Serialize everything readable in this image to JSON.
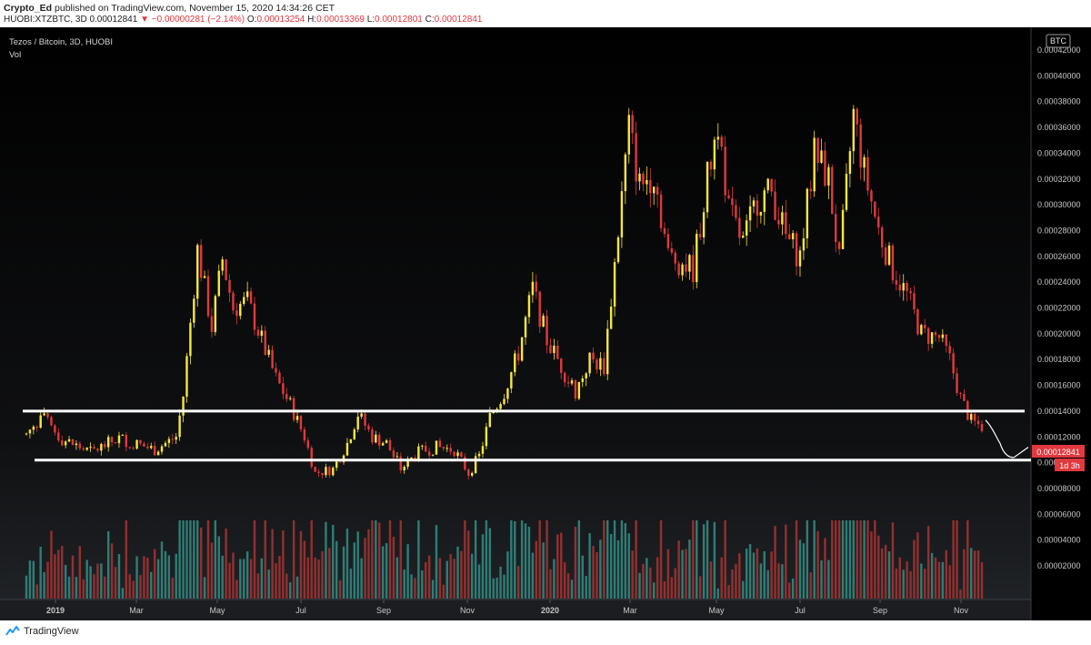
{
  "header": {
    "author": "Crypto_Ed",
    "published_text": "published on TradingView.com, November 15, 2020 14:34:26 CET",
    "symbol_line_prefix": "HUOBI:XTZBTC, 3D",
    "last": "0.00012841",
    "change": "−0.00000281 (−2.14%)",
    "o_label": "O:",
    "o": "0.00013254",
    "h_label": "H:",
    "h": "0.00013369",
    "l_label": "L:",
    "l": "0.00012801",
    "c_label": "C:",
    "c": "0.00012841"
  },
  "legend": {
    "title": "Tezos / Bitcoin, 3D, HUOBI",
    "vol": "Vol"
  },
  "currency_badge": "BTC",
  "price_tag": "0.00012841",
  "countdown_tag": "1d 3h",
  "footer": {
    "brand": "TradingView"
  },
  "colors": {
    "up": "#f5e73b",
    "down": "#e0393e",
    "vol_up": "#2f7d76",
    "vol_down": "#93302f",
    "background": "#000000"
  },
  "chart_data": {
    "type": "candlestick",
    "y_axis": {
      "min": 2e-05,
      "max": 0.00044,
      "ticks": [
        2e-05,
        4e-05,
        6e-05,
        8e-05,
        0.0001,
        0.00012,
        0.00014,
        0.00016,
        0.00018,
        0.0002,
        0.00022,
        0.00024,
        0.00026,
        0.00028,
        0.0003,
        0.00032,
        0.00034,
        0.00036,
        0.00038,
        0.0004,
        0.00042
      ]
    },
    "x_axis": {
      "labels": [
        "2019",
        "Mar",
        "May",
        "Jul",
        "Sep",
        "Nov",
        "2020",
        "Mar",
        "May",
        "Jul",
        "Sep",
        "Nov"
      ]
    },
    "close_path": [
      {
        "t": 0,
        "v": 0.000122
      },
      {
        "t": 4,
        "v": 0.000136
      },
      {
        "t": 10,
        "v": 0.000118
      },
      {
        "t": 18,
        "v": 0.000108
      },
      {
        "t": 26,
        "v": 0.000119
      },
      {
        "t": 36,
        "v": 0.00011
      },
      {
        "t": 42,
        "v": 0.00012
      },
      {
        "t": 44,
        "v": 0.000152
      },
      {
        "t": 48,
        "v": 0.000265
      },
      {
        "t": 52,
        "v": 0.000205
      },
      {
        "t": 55,
        "v": 0.000258
      },
      {
        "t": 58,
        "v": 0.00022
      },
      {
        "t": 62,
        "v": 0.000225
      },
      {
        "t": 66,
        "v": 0.000195
      },
      {
        "t": 70,
        "v": 0.000165
      },
      {
        "t": 74,
        "v": 0.000145
      },
      {
        "t": 78,
        "v": 0.00012
      },
      {
        "t": 81,
        "v": 9.2e-05
      },
      {
        "t": 86,
        "v": 9.5e-05
      },
      {
        "t": 90,
        "v": 0.000115
      },
      {
        "t": 93,
        "v": 0.000138
      },
      {
        "t": 97,
        "v": 0.00012
      },
      {
        "t": 101,
        "v": 0.000115
      },
      {
        "t": 105,
        "v": 9.5e-05
      },
      {
        "t": 110,
        "v": 0.000108
      },
      {
        "t": 115,
        "v": 0.000112
      },
      {
        "t": 120,
        "v": 0.00011
      },
      {
        "t": 124,
        "v": 9.2e-05
      },
      {
        "t": 127,
        "v": 0.000105
      },
      {
        "t": 130,
        "v": 0.000135
      },
      {
        "t": 134,
        "v": 0.000155
      },
      {
        "t": 138,
        "v": 0.000185
      },
      {
        "t": 142,
        "v": 0.000235
      },
      {
        "t": 146,
        "v": 0.000195
      },
      {
        "t": 150,
        "v": 0.000175
      },
      {
        "t": 154,
        "v": 0.000155
      },
      {
        "t": 158,
        "v": 0.00018
      },
      {
        "t": 162,
        "v": 0.000175
      },
      {
        "t": 166,
        "v": 0.00028
      },
      {
        "t": 169,
        "v": 0.00036
      },
      {
        "t": 172,
        "v": 0.000315
      },
      {
        "t": 176,
        "v": 0.000325
      },
      {
        "t": 180,
        "v": 0.00026
      },
      {
        "t": 184,
        "v": 0.000255
      },
      {
        "t": 187,
        "v": 0.00025
      },
      {
        "t": 191,
        "v": 0.00032
      },
      {
        "t": 194,
        "v": 0.000365
      },
      {
        "t": 197,
        "v": 0.000295
      },
      {
        "t": 201,
        "v": 0.00027
      },
      {
        "t": 205,
        "v": 0.000305
      },
      {
        "t": 209,
        "v": 0.00031
      },
      {
        "t": 213,
        "v": 0.000275
      },
      {
        "t": 217,
        "v": 0.00026
      },
      {
        "t": 221,
        "v": 0.00034
      },
      {
        "t": 225,
        "v": 0.00032
      },
      {
        "t": 228,
        "v": 0.000255
      },
      {
        "t": 232,
        "v": 0.00037
      },
      {
        "t": 235,
        "v": 0.000325
      },
      {
        "t": 239,
        "v": 0.00028
      },
      {
        "t": 243,
        "v": 0.00025
      },
      {
        "t": 247,
        "v": 0.00023
      },
      {
        "t": 251,
        "v": 0.0002
      },
      {
        "t": 256,
        "v": 0.000197
      },
      {
        "t": 259,
        "v": 0.00018
      },
      {
        "t": 262,
        "v": 0.00015
      },
      {
        "t": 265,
        "v": 0.000132
      },
      {
        "t": 268,
        "v": 0.000128
      }
    ],
    "num_candles": 269,
    "drawings": {
      "resistance_line": 0.00014,
      "support_line": 0.000102,
      "projection_arrow": [
        0.000133,
        0.000115,
        0.000104,
        0.000112
      ]
    }
  }
}
